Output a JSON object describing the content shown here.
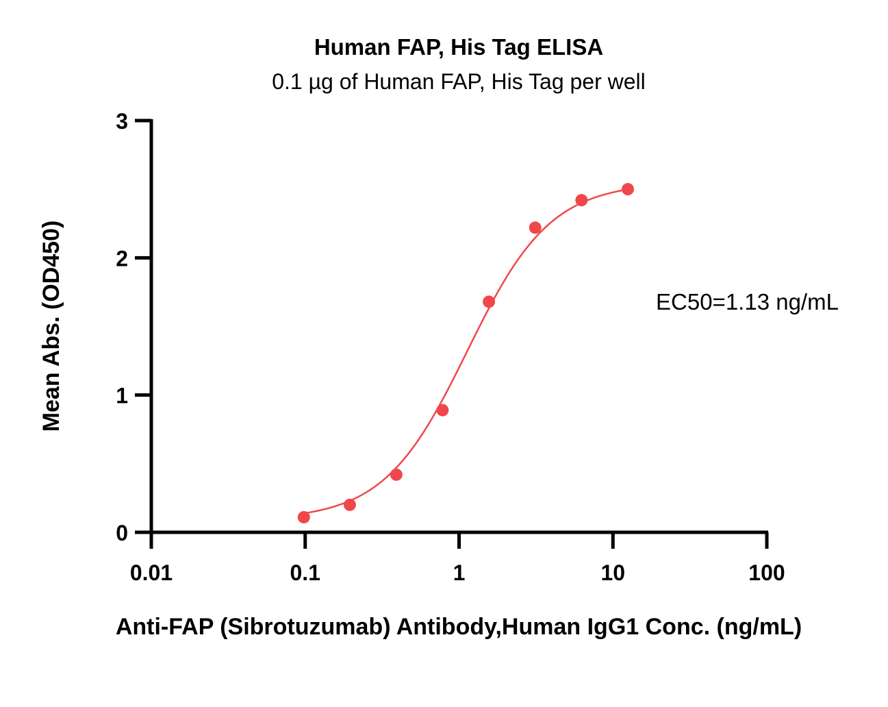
{
  "chart_data": {
    "type": "scatter",
    "title": "Human FAP, His Tag ELISA",
    "subtitle": "0.1 µg of Human FAP, His Tag per well",
    "xlabel": "Anti-FAP (Sibrotuzumab) Antibody,Human IgG1 Conc. (ng/mL)",
    "ylabel": "Mean Abs. (OD450)",
    "xscale": "log",
    "xlim": [
      0.01,
      100
    ],
    "ylim": [
      0,
      3
    ],
    "x_ticks": [
      "0.01",
      "0.1",
      "1",
      "10",
      "100"
    ],
    "y_ticks": [
      "0",
      "1",
      "2",
      "3"
    ],
    "grid": false,
    "color": "#F0474B",
    "fit": "four-parameter logistic",
    "series": [
      {
        "x": [
          0.098,
          0.195,
          0.391,
          0.781,
          1.563,
          3.125,
          6.25,
          12.5
        ],
        "y": [
          0.11,
          0.2,
          0.42,
          0.89,
          1.68,
          2.22,
          2.42,
          2.5
        ]
      }
    ],
    "annotations": [
      "EC50=1.13 ng/mL"
    ]
  }
}
